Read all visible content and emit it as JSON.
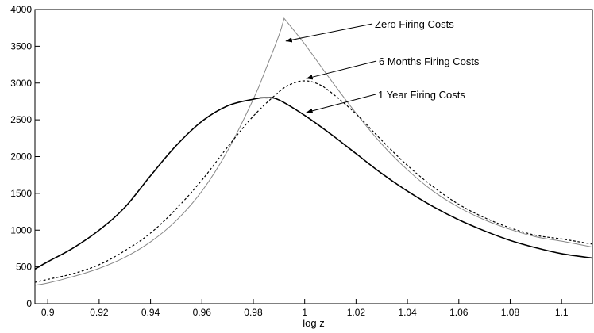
{
  "chart_data": {
    "type": "line",
    "title": "",
    "xlabel": "log z",
    "ylabel": "",
    "xlim": [
      0.895,
      1.112
    ],
    "ylim": [
      0,
      4000
    ],
    "grid": false,
    "legend": "none",
    "xticks": [
      0.9,
      0.92,
      0.94,
      0.96,
      0.98,
      1,
      1.02,
      1.04,
      1.06,
      1.08,
      1.1
    ],
    "xtick_labels": [
      "0.9",
      "0.92",
      "0.94",
      "0.96",
      "0.98",
      "1",
      "1.02",
      "1.04",
      "1.06",
      "1.08",
      "1.1"
    ],
    "yticks": [
      0,
      500,
      1000,
      1500,
      2000,
      2500,
      3000,
      3500,
      4000
    ],
    "ytick_labels": [
      "0",
      "500",
      "1000",
      "1500",
      "2000",
      "2500",
      "3000",
      "3500",
      "4000"
    ],
    "series": [
      {
        "name": "Zero Firing Costs",
        "style": "solid-thin",
        "color": "#888888",
        "x": [
          0.895,
          0.9,
          0.91,
          0.92,
          0.93,
          0.94,
          0.95,
          0.96,
          0.97,
          0.98,
          0.985,
          0.99,
          0.992,
          1.0,
          1.01,
          1.02,
          1.03,
          1.04,
          1.05,
          1.06,
          1.07,
          1.08,
          1.09,
          1.1,
          1.112
        ],
        "y": [
          250,
          280,
          370,
          480,
          630,
          840,
          1130,
          1530,
          2080,
          2780,
          3200,
          3650,
          3880,
          3530,
          3050,
          2590,
          2170,
          1820,
          1530,
          1310,
          1140,
          1010,
          910,
          850,
          770
        ]
      },
      {
        "name": "6 Months Firing Costs",
        "style": "dashed",
        "color": "#000000",
        "x": [
          0.895,
          0.9,
          0.91,
          0.92,
          0.93,
          0.94,
          0.95,
          0.96,
          0.97,
          0.98,
          0.99,
          0.995,
          1.0,
          1.005,
          1.01,
          1.02,
          1.03,
          1.04,
          1.05,
          1.06,
          1.07,
          1.08,
          1.09,
          1.1,
          1.112
        ],
        "y": [
          290,
          330,
          410,
          530,
          720,
          960,
          1290,
          1680,
          2130,
          2550,
          2880,
          2990,
          3030,
          2990,
          2880,
          2580,
          2220,
          1880,
          1590,
          1350,
          1170,
          1030,
          930,
          880,
          810
        ]
      },
      {
        "name": "1 Year Firing Costs",
        "style": "solid-bold",
        "color": "#000000",
        "x": [
          0.895,
          0.9,
          0.91,
          0.92,
          0.93,
          0.94,
          0.95,
          0.96,
          0.97,
          0.98,
          0.985,
          0.99,
          1.0,
          1.01,
          1.02,
          1.03,
          1.04,
          1.05,
          1.06,
          1.07,
          1.08,
          1.09,
          1.1,
          1.112
        ],
        "y": [
          470,
          570,
          760,
          1000,
          1310,
          1740,
          2150,
          2480,
          2690,
          2780,
          2800,
          2770,
          2560,
          2310,
          2040,
          1770,
          1530,
          1320,
          1140,
          990,
          860,
          760,
          680,
          620
        ]
      }
    ],
    "annotations": [
      {
        "text": "Zero Firing Costs",
        "series": 0,
        "arrow_to": [
          0.992,
          3570
        ]
      },
      {
        "text": "6 Months Firing Costs",
        "series": 1,
        "arrow_to": [
          1.0,
          3060
        ]
      },
      {
        "text": "1 Year Firing Costs",
        "series": 2,
        "arrow_to": [
          1.0,
          2600
        ]
      }
    ]
  }
}
